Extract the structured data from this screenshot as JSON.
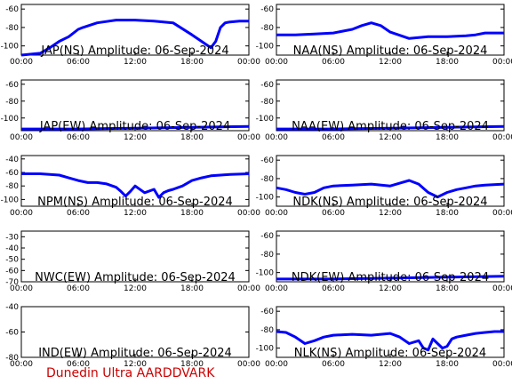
{
  "footer": "Dunedin Ultra AARDDVARK",
  "colors": {
    "trace": "#0000ff",
    "axis": "#000000",
    "footer": "#cc0000"
  },
  "chart_data": [
    {
      "type": "line",
      "title": "JAP(NS) Amplitude: 06-Sep-2024",
      "x_ticks": [
        "00:00",
        "06:00",
        "12:00",
        "18:00",
        "00:00"
      ],
      "ylim": [
        -110,
        -55
      ],
      "y_ticks": [
        -100,
        -80,
        -60
      ],
      "series": [
        {
          "x": [
            0,
            2,
            3,
            4,
            5,
            6,
            6.5,
            8,
            10,
            12,
            14,
            16,
            18,
            19,
            20,
            20.5,
            21,
            21.5,
            22,
            23,
            24
          ],
          "y": [
            -110,
            -108,
            -102,
            -95,
            -90,
            -82,
            -80,
            -75,
            -72,
            -72,
            -73,
            -75,
            -88,
            -95,
            -102,
            -95,
            -80,
            -75,
            -74,
            -73,
            -73
          ]
        }
      ]
    },
    {
      "type": "line",
      "title": "NAA(NS) Amplitude: 06-Sep-2024",
      "x_ticks": [
        "00:00",
        "06:00",
        "12:00",
        "18:00",
        "00:00"
      ],
      "ylim": [
        -110,
        -55
      ],
      "y_ticks": [
        -100,
        -80,
        -60
      ],
      "series": [
        {
          "x": [
            0,
            2,
            4,
            6,
            8,
            9,
            10,
            11,
            12,
            14,
            16,
            18,
            20,
            21,
            22,
            24
          ],
          "y": [
            -88,
            -88,
            -87,
            -86,
            -82,
            -78,
            -75,
            -78,
            -85,
            -92,
            -90,
            -90,
            -89,
            -88,
            -86,
            -86
          ]
        }
      ]
    },
    {
      "type": "line",
      "title": "JAP(EW) Amplitude: 06-Sep-2024",
      "x_ticks": [
        "00:00",
        "06:00",
        "12:00",
        "18:00",
        "00:00"
      ],
      "ylim": [
        -115,
        -55
      ],
      "y_ticks": [
        -100,
        -80,
        -60
      ],
      "series": [
        {
          "x": [
            0,
            6,
            12,
            18,
            24
          ],
          "y": [
            -113,
            -113,
            -112,
            -111,
            -110
          ]
        }
      ]
    },
    {
      "type": "line",
      "title": "NAA(EW) Amplitude: 06-Sep-2024",
      "x_ticks": [
        "00:00",
        "06:00",
        "12:00",
        "18:00",
        "00:00"
      ],
      "ylim": [
        -115,
        -55
      ],
      "y_ticks": [
        -100,
        -80,
        -60
      ],
      "series": [
        {
          "x": [
            0,
            6,
            12,
            18,
            24
          ],
          "y": [
            -113,
            -113,
            -112,
            -111,
            -110
          ]
        }
      ]
    },
    {
      "type": "line",
      "title": "NPM(NS) Amplitude: 06-Sep-2024",
      "x_ticks": [
        "00:00",
        "06:00",
        "12:00",
        "18:00",
        "00:00"
      ],
      "ylim": [
        -110,
        -35
      ],
      "y_ticks": [
        -100,
        -80,
        -60,
        -40
      ],
      "series": [
        {
          "x": [
            0,
            2,
            4,
            5,
            6,
            7,
            8,
            9,
            10,
            10.5,
            11,
            11.5,
            12,
            13,
            14,
            14.5,
            15,
            15.5,
            16,
            17,
            18,
            19,
            20,
            21,
            22,
            24
          ],
          "y": [
            -62,
            -62,
            -64,
            -68,
            -72,
            -75,
            -75,
            -77,
            -82,
            -88,
            -95,
            -88,
            -80,
            -90,
            -85,
            -97,
            -90,
            -87,
            -85,
            -80,
            -72,
            -68,
            -65,
            -64,
            -63,
            -62
          ]
        }
      ]
    },
    {
      "type": "line",
      "title": "NDK(NS) Amplitude: 06-Sep-2024",
      "x_ticks": [
        "00:00",
        "06:00",
        "12:00",
        "18:00",
        "00:00"
      ],
      "ylim": [
        -110,
        -55
      ],
      "y_ticks": [
        -100,
        -80,
        -60
      ],
      "series": [
        {
          "x": [
            0,
            1,
            2,
            3,
            4,
            5,
            6,
            8,
            10,
            12,
            13,
            14,
            15,
            16,
            17,
            18,
            19,
            20,
            21,
            22,
            24
          ],
          "y": [
            -90,
            -92,
            -95,
            -97,
            -95,
            -90,
            -88,
            -87,
            -86,
            -88,
            -85,
            -82,
            -86,
            -95,
            -100,
            -95,
            -92,
            -90,
            -88,
            -87,
            -86
          ]
        }
      ]
    },
    {
      "type": "line",
      "title": "NWC(EW) Amplitude: 06-Sep-2024",
      "x_ticks": [
        "00:00",
        "06:00",
        "12:00",
        "18:00",
        "00:00"
      ],
      "ylim": [
        -70,
        -25
      ],
      "y_ticks": [
        -70,
        -60,
        -50,
        -40,
        -30
      ],
      "series": []
    },
    {
      "type": "line",
      "title": "NDK(EW) Amplitude: 06-Sep-2024",
      "x_ticks": [
        "00:00",
        "06:00",
        "12:00",
        "18:00",
        "00:00"
      ],
      "ylim": [
        -110,
        -55
      ],
      "y_ticks": [
        -100,
        -80,
        -60
      ],
      "series": [
        {
          "x": [
            0,
            6,
            12,
            18,
            24
          ],
          "y": [
            -107,
            -107,
            -106,
            -105,
            -104
          ]
        }
      ]
    },
    {
      "type": "line",
      "title": "IND(EW) Amplitude: 06-Sep-2024",
      "x_ticks": [
        "00:00",
        "06:00",
        "12:00",
        "18:00",
        "00:00"
      ],
      "ylim": [
        -80,
        -40
      ],
      "y_ticks": [
        -80,
        -60,
        -40
      ],
      "series": []
    },
    {
      "type": "line",
      "title": "NLK(NS) Amplitude: 06-Sep-2024",
      "x_ticks": [
        "00:00",
        "06:00",
        "12:00",
        "18:00",
        "00:00"
      ],
      "ylim": [
        -110,
        -55
      ],
      "y_ticks": [
        -100,
        -80,
        -60
      ],
      "series": [
        {
          "x": [
            0,
            1,
            2,
            3,
            4,
            5,
            6,
            8,
            10,
            12,
            13,
            14,
            15,
            15.5,
            16,
            16.5,
            17,
            17.5,
            18,
            18.5,
            19,
            20,
            21,
            22,
            23,
            24
          ],
          "y": [
            -82,
            -83,
            -88,
            -95,
            -92,
            -88,
            -86,
            -85,
            -86,
            -84,
            -88,
            -95,
            -92,
            -100,
            -102,
            -90,
            -95,
            -100,
            -98,
            -90,
            -88,
            -86,
            -84,
            -83,
            -82,
            -82
          ]
        }
      ]
    }
  ]
}
